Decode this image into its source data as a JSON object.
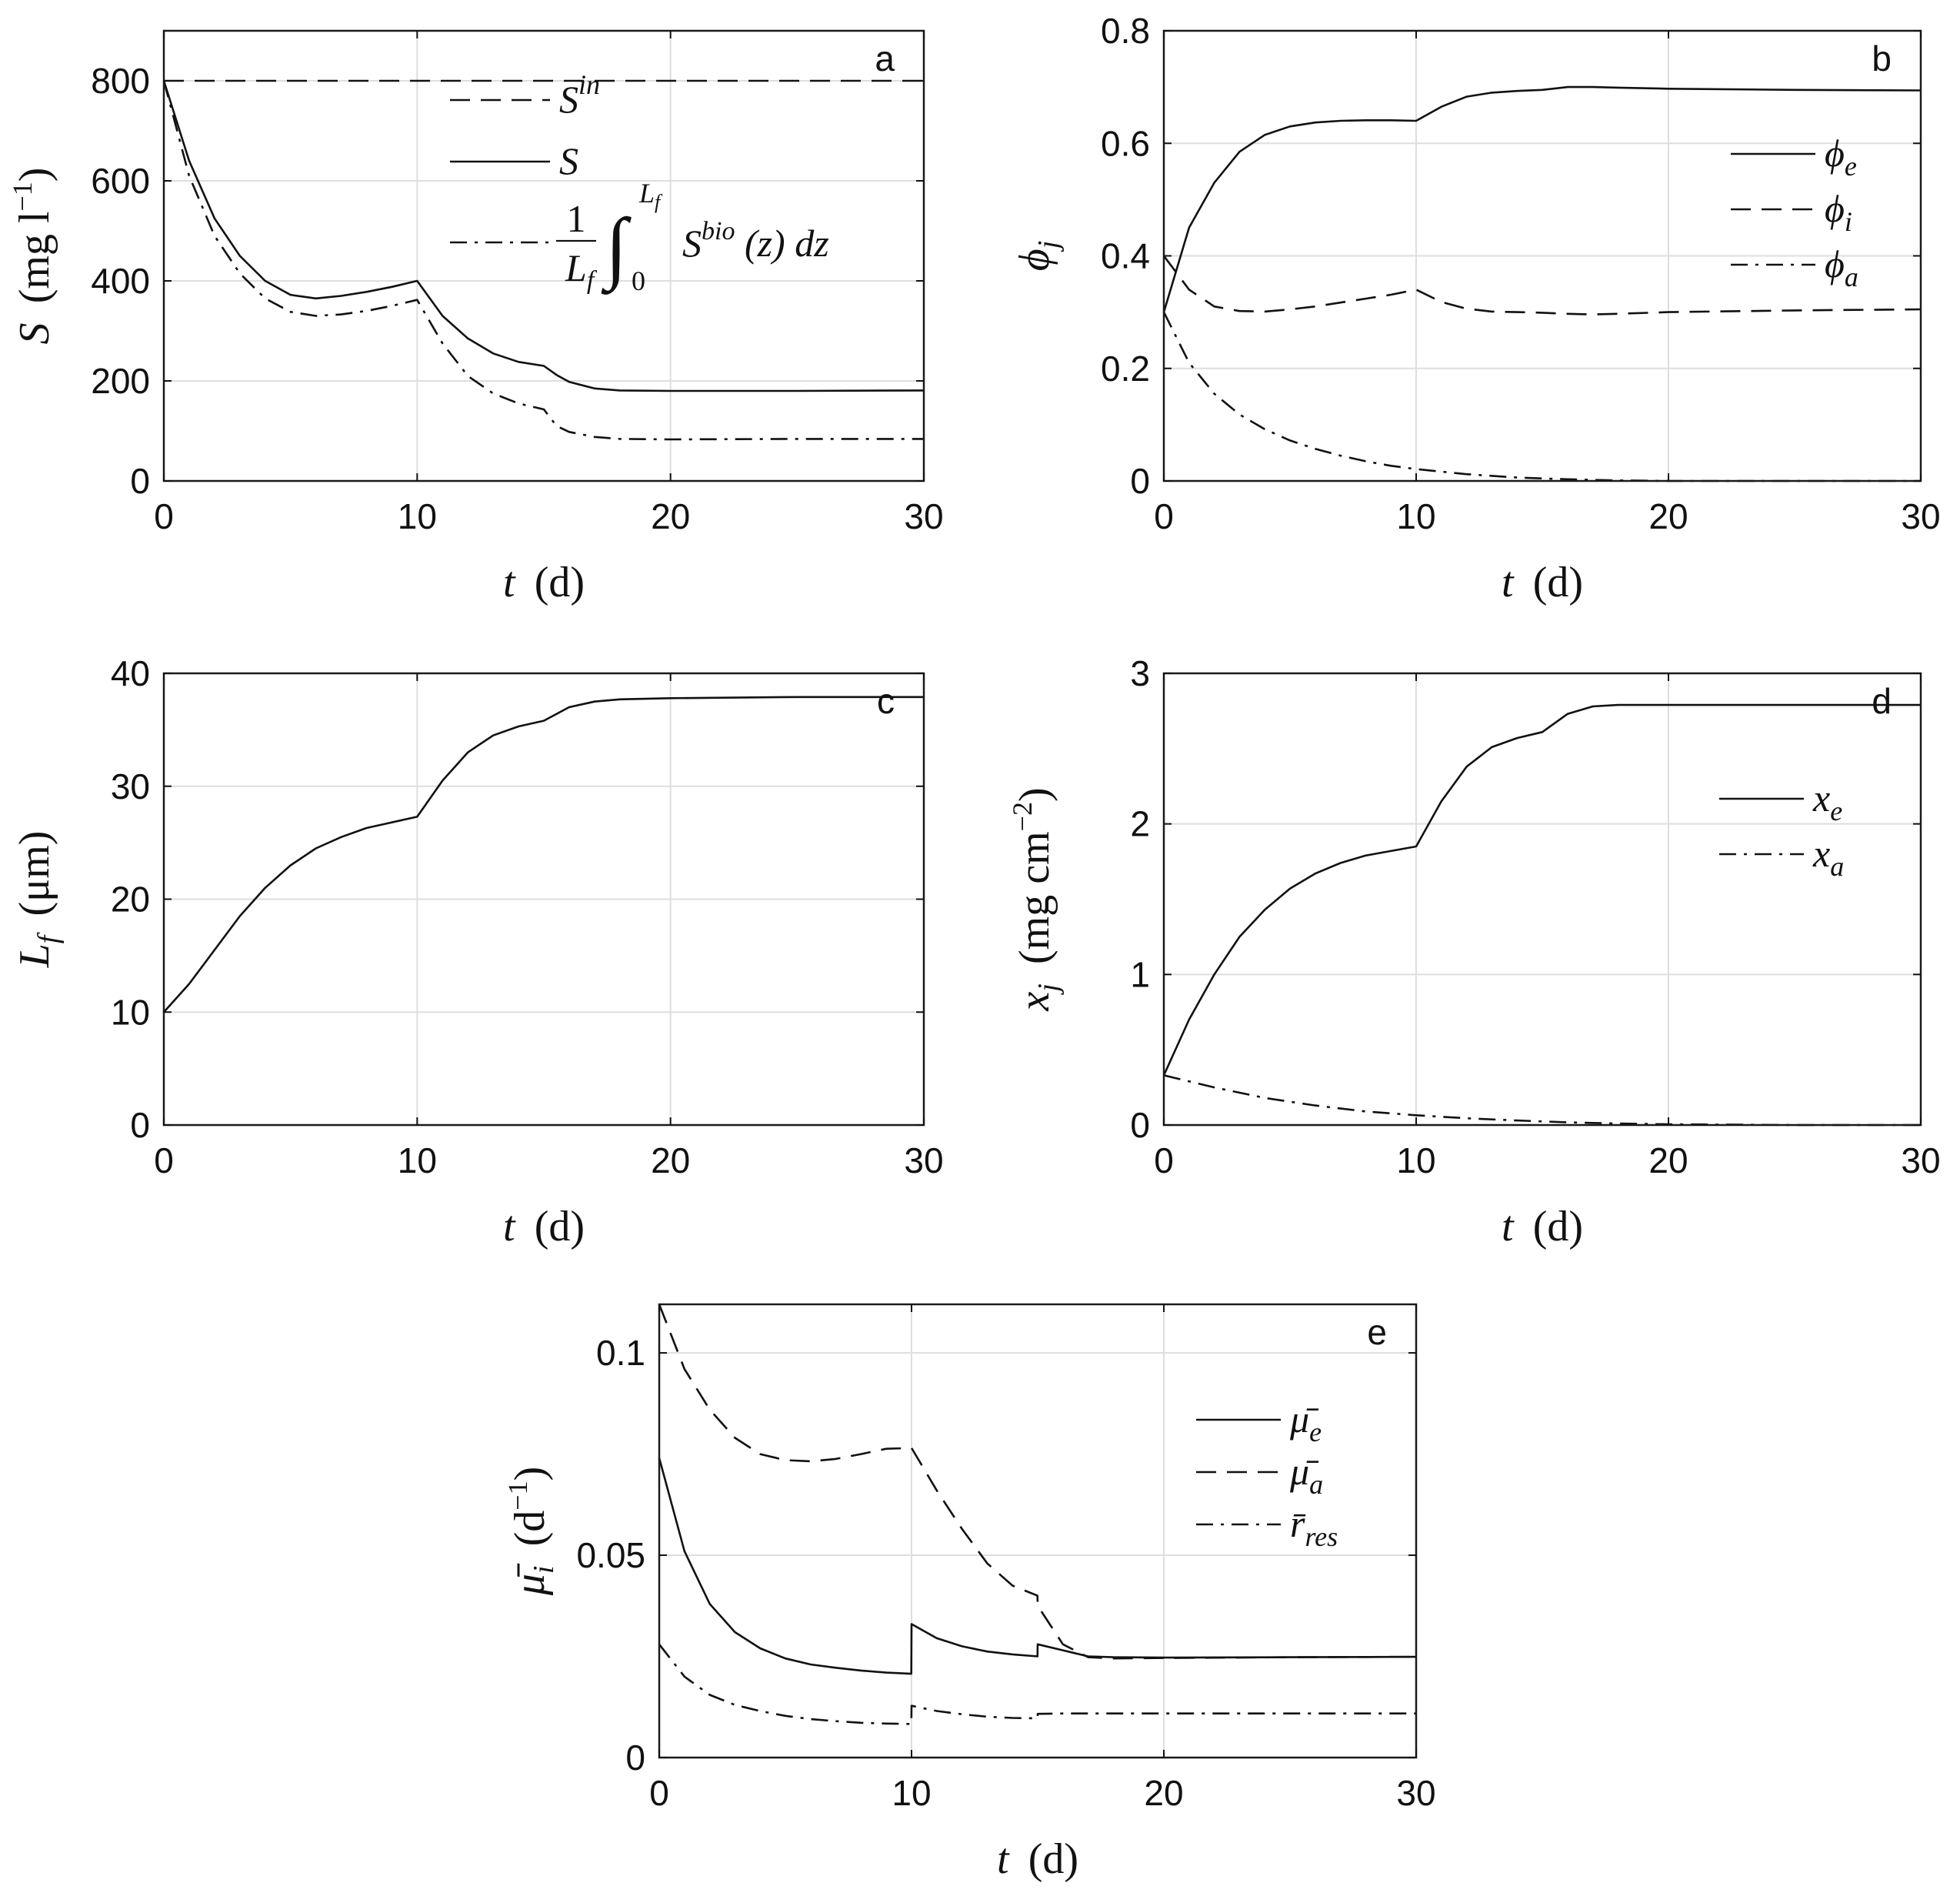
{
  "chart_data": [
    {
      "id": "a",
      "type": "line",
      "panel_label": "a",
      "xlabel": {
        "var": "t",
        "unit": "(d)"
      },
      "ylabel": {
        "var": "S",
        "unit": "(mg l",
        "unit_sup": "−1",
        "unit_end": ")"
      },
      "xlim": [
        0,
        30
      ],
      "ylim": [
        0,
        900
      ],
      "xticks": [
        0,
        10,
        20,
        30
      ],
      "xtick_labels": [
        "0",
        "10",
        "20",
        "30"
      ],
      "yticks": [
        0,
        200,
        400,
        600,
        800
      ],
      "ytick_labels": [
        "0",
        "200",
        "400",
        "600",
        "800"
      ],
      "legend_position": "top-center",
      "series": [
        {
          "name": "S^in",
          "legend": {
            "base": "S",
            "sup": "in"
          },
          "style": "dashed",
          "x": [
            0,
            30
          ],
          "y": [
            800,
            800
          ]
        },
        {
          "name": "S",
          "legend": {
            "base": "S"
          },
          "style": "solid",
          "x": [
            0,
            1,
            2,
            3,
            4,
            5,
            6,
            7,
            8,
            9,
            10,
            11,
            12,
            13,
            14,
            15,
            15.5,
            16,
            17,
            18,
            20,
            25,
            30
          ],
          "y": [
            800,
            640,
            525,
            450,
            400,
            372,
            365,
            370,
            378,
            388,
            400,
            330,
            285,
            255,
            238,
            230,
            212,
            198,
            185,
            181,
            180,
            180,
            181
          ]
        },
        {
          "name": "(1/L_f) ∫ S^bio(z) dz",
          "legend": {
            "frac_num": "1",
            "frac_den": "L",
            "frac_den_sub": "f",
            "int_upper": "L",
            "int_upper_sub": "f",
            "int_lower": "0",
            "body": "S",
            "body_sup": "bio",
            "tail": "(z) dz"
          },
          "style": "dashdot",
          "x": [
            0,
            1,
            2,
            3,
            4,
            5,
            6,
            7,
            8,
            9,
            10,
            11,
            12,
            13,
            14,
            15,
            15.5,
            16,
            17,
            18,
            20,
            25,
            30
          ],
          "y": [
            800,
            610,
            490,
            415,
            365,
            338,
            330,
            333,
            340,
            350,
            362,
            275,
            210,
            175,
            155,
            143,
            110,
            98,
            88,
            84,
            83,
            84,
            84
          ]
        }
      ]
    },
    {
      "id": "b",
      "type": "line",
      "panel_label": "b",
      "xlabel": {
        "var": "t",
        "unit": "(d)"
      },
      "ylabel": {
        "var": "ϕ",
        "var_sub": "j"
      },
      "xlim": [
        0,
        30
      ],
      "ylim": [
        0,
        0.8
      ],
      "xticks": [
        0,
        10,
        20,
        30
      ],
      "xtick_labels": [
        "0",
        "10",
        "20",
        "30"
      ],
      "yticks": [
        0,
        0.2,
        0.4,
        0.6,
        0.8
      ],
      "ytick_labels": [
        "0",
        "0.2",
        "0.4",
        "0.6",
        "0.8"
      ],
      "legend_position": "top-right",
      "series": [
        {
          "name": "ϕ_e",
          "legend": {
            "base": "ϕ",
            "sub": "e"
          },
          "style": "solid",
          "x": [
            0,
            1,
            2,
            3,
            4,
            5,
            6,
            7,
            8,
            9,
            10,
            11,
            12,
            13,
            14,
            15,
            16,
            17,
            18,
            20,
            25,
            30
          ],
          "y": [
            0.3,
            0.45,
            0.53,
            0.585,
            0.615,
            0.63,
            0.637,
            0.64,
            0.641,
            0.641,
            0.64,
            0.665,
            0.683,
            0.69,
            0.693,
            0.695,
            0.7,
            0.7,
            0.699,
            0.697,
            0.695,
            0.694
          ]
        },
        {
          "name": "ϕ_i",
          "legend": {
            "base": "ϕ",
            "sub": "i"
          },
          "style": "dashed",
          "x": [
            0,
            1,
            2,
            3,
            4,
            5,
            6,
            7,
            8,
            9,
            10,
            11,
            12,
            13,
            14,
            15,
            16,
            17,
            18,
            20,
            25,
            30
          ],
          "y": [
            0.4,
            0.34,
            0.31,
            0.302,
            0.301,
            0.305,
            0.31,
            0.317,
            0.324,
            0.331,
            0.34,
            0.318,
            0.306,
            0.301,
            0.3,
            0.299,
            0.297,
            0.296,
            0.297,
            0.3,
            0.303,
            0.305
          ]
        },
        {
          "name": "ϕ_a",
          "legend": {
            "base": "ϕ",
            "sub": "a"
          },
          "style": "dashdot",
          "x": [
            0,
            1,
            2,
            3,
            4,
            5,
            6,
            7,
            8,
            9,
            10,
            12,
            14,
            16,
            18,
            20,
            25,
            30
          ],
          "y": [
            0.3,
            0.21,
            0.155,
            0.118,
            0.092,
            0.072,
            0.057,
            0.045,
            0.035,
            0.027,
            0.021,
            0.012,
            0.006,
            0.003,
            0.001,
            0.0,
            0.0,
            0.0
          ]
        }
      ]
    },
    {
      "id": "c",
      "type": "line",
      "panel_label": "c",
      "xlabel": {
        "var": "t",
        "unit": "(d)"
      },
      "ylabel": {
        "var": "L",
        "var_sub": "f",
        "unit": "(μm)"
      },
      "xlim": [
        0,
        30
      ],
      "ylim": [
        0,
        40
      ],
      "xticks": [
        0,
        10,
        20,
        30
      ],
      "xtick_labels": [
        "0",
        "10",
        "20",
        "30"
      ],
      "yticks": [
        0,
        10,
        20,
        30,
        40
      ],
      "ytick_labels": [
        "0",
        "10",
        "20",
        "30",
        "40"
      ],
      "series": [
        {
          "name": "L_f",
          "style": "solid",
          "x": [
            0,
            1,
            2,
            3,
            4,
            5,
            6,
            7,
            8,
            9,
            10,
            11,
            12,
            13,
            14,
            15,
            16,
            17,
            18,
            20,
            25,
            30
          ],
          "y": [
            10,
            12.5,
            15.5,
            18.5,
            21,
            23,
            24.5,
            25.5,
            26.3,
            26.8,
            27.3,
            30.5,
            33,
            34.5,
            35.3,
            35.8,
            37,
            37.5,
            37.7,
            37.8,
            37.9,
            37.9
          ]
        }
      ]
    },
    {
      "id": "d",
      "type": "line",
      "panel_label": "d",
      "xlabel": {
        "var": "t",
        "unit": "(d)"
      },
      "ylabel": {
        "var": "x",
        "var_sub": "j",
        "unit": "(mg cm",
        "unit_sup": "−2",
        "unit_end": ")"
      },
      "xlim": [
        0,
        30
      ],
      "ylim": [
        0,
        3
      ],
      "xticks": [
        0,
        10,
        20,
        30
      ],
      "xtick_labels": [
        "0",
        "10",
        "20",
        "30"
      ],
      "yticks": [
        0,
        1,
        2,
        3
      ],
      "ytick_labels": [
        "0",
        "1",
        "2",
        "3"
      ],
      "legend_position": "top-right",
      "series": [
        {
          "name": "x_e",
          "legend": {
            "base": "x",
            "sub": "e"
          },
          "style": "solid",
          "x": [
            0,
            1,
            2,
            3,
            4,
            5,
            6,
            7,
            8,
            9,
            10,
            11,
            12,
            13,
            14,
            15,
            16,
            17,
            18,
            20,
            25,
            30
          ],
          "y": [
            0.33,
            0.7,
            1.0,
            1.25,
            1.43,
            1.57,
            1.67,
            1.74,
            1.79,
            1.82,
            1.85,
            2.15,
            2.38,
            2.51,
            2.57,
            2.61,
            2.73,
            2.78,
            2.79,
            2.79,
            2.79,
            2.79
          ]
        },
        {
          "name": "x_a",
          "legend": {
            "base": "x",
            "sub": "a"
          },
          "style": "dashdot",
          "x": [
            0,
            2,
            4,
            6,
            8,
            10,
            12,
            14,
            16,
            18,
            20,
            25,
            30
          ],
          "y": [
            0.33,
            0.25,
            0.18,
            0.13,
            0.09,
            0.065,
            0.045,
            0.03,
            0.018,
            0.01,
            0.005,
            0.0,
            0.0
          ]
        }
      ]
    },
    {
      "id": "e",
      "type": "line",
      "panel_label": "e",
      "xlabel": {
        "var": "t",
        "unit": "(d)"
      },
      "ylabel": {
        "var": "μ̄",
        "var_sub": "i",
        "unit": "(d",
        "unit_sup": "−1",
        "unit_end": ")"
      },
      "xlim": [
        0,
        30
      ],
      "ylim": [
        0,
        0.112
      ],
      "xticks": [
        0,
        10,
        20,
        30
      ],
      "xtick_labels": [
        "0",
        "10",
        "20",
        "30"
      ],
      "yticks": [
        0,
        0.05,
        0.1
      ],
      "ytick_labels": [
        "0",
        "0.05",
        "0.1"
      ],
      "legend_position": "right",
      "series": [
        {
          "name": "μ̄_e",
          "legend": {
            "base": "μ̄",
            "sub": "e"
          },
          "style": "solid",
          "x": [
            0,
            1,
            2,
            3,
            4,
            5,
            6,
            7,
            8,
            9,
            9.99,
            10,
            11,
            12,
            13,
            14,
            14.99,
            15,
            16,
            17,
            18,
            20,
            25,
            30
          ],
          "y": [
            0.074,
            0.051,
            0.038,
            0.031,
            0.027,
            0.0245,
            0.023,
            0.0222,
            0.0215,
            0.021,
            0.0207,
            0.033,
            0.0295,
            0.0275,
            0.0262,
            0.0255,
            0.025,
            0.028,
            0.0265,
            0.025,
            0.0248,
            0.0247,
            0.0248,
            0.0249
          ]
        },
        {
          "name": "μ̄_a",
          "legend": {
            "base": "μ̄",
            "sub": "a"
          },
          "style": "dashed",
          "x": [
            0,
            1,
            2,
            3,
            4,
            5,
            6,
            7,
            8,
            9,
            10,
            11,
            12,
            13,
            14,
            14.99,
            15,
            16,
            17,
            18,
            20,
            25,
            30
          ],
          "y": [
            0.112,
            0.096,
            0.086,
            0.079,
            0.075,
            0.0735,
            0.0732,
            0.0738,
            0.075,
            0.0763,
            0.0765,
            0.066,
            0.0565,
            0.048,
            0.0425,
            0.04,
            0.0375,
            0.028,
            0.0248,
            0.0245,
            0.0246,
            0.0248,
            0.0249
          ]
        },
        {
          "name": "r̄_res",
          "legend": {
            "base": "r̄",
            "sub": "res"
          },
          "style": "dashdot",
          "x": [
            0,
            1,
            2,
            3,
            4,
            5,
            6,
            7,
            8,
            9,
            9.99,
            10,
            11,
            12,
            13,
            14,
            14.99,
            15,
            16,
            18,
            20,
            25,
            30
          ],
          "y": [
            0.028,
            0.02,
            0.0155,
            0.013,
            0.0115,
            0.0103,
            0.0095,
            0.009,
            0.0086,
            0.0084,
            0.0083,
            0.0128,
            0.0115,
            0.0107,
            0.0101,
            0.0098,
            0.0097,
            0.0108,
            0.0109,
            0.0109,
            0.0109,
            0.0109,
            0.0109
          ]
        }
      ]
    }
  ]
}
